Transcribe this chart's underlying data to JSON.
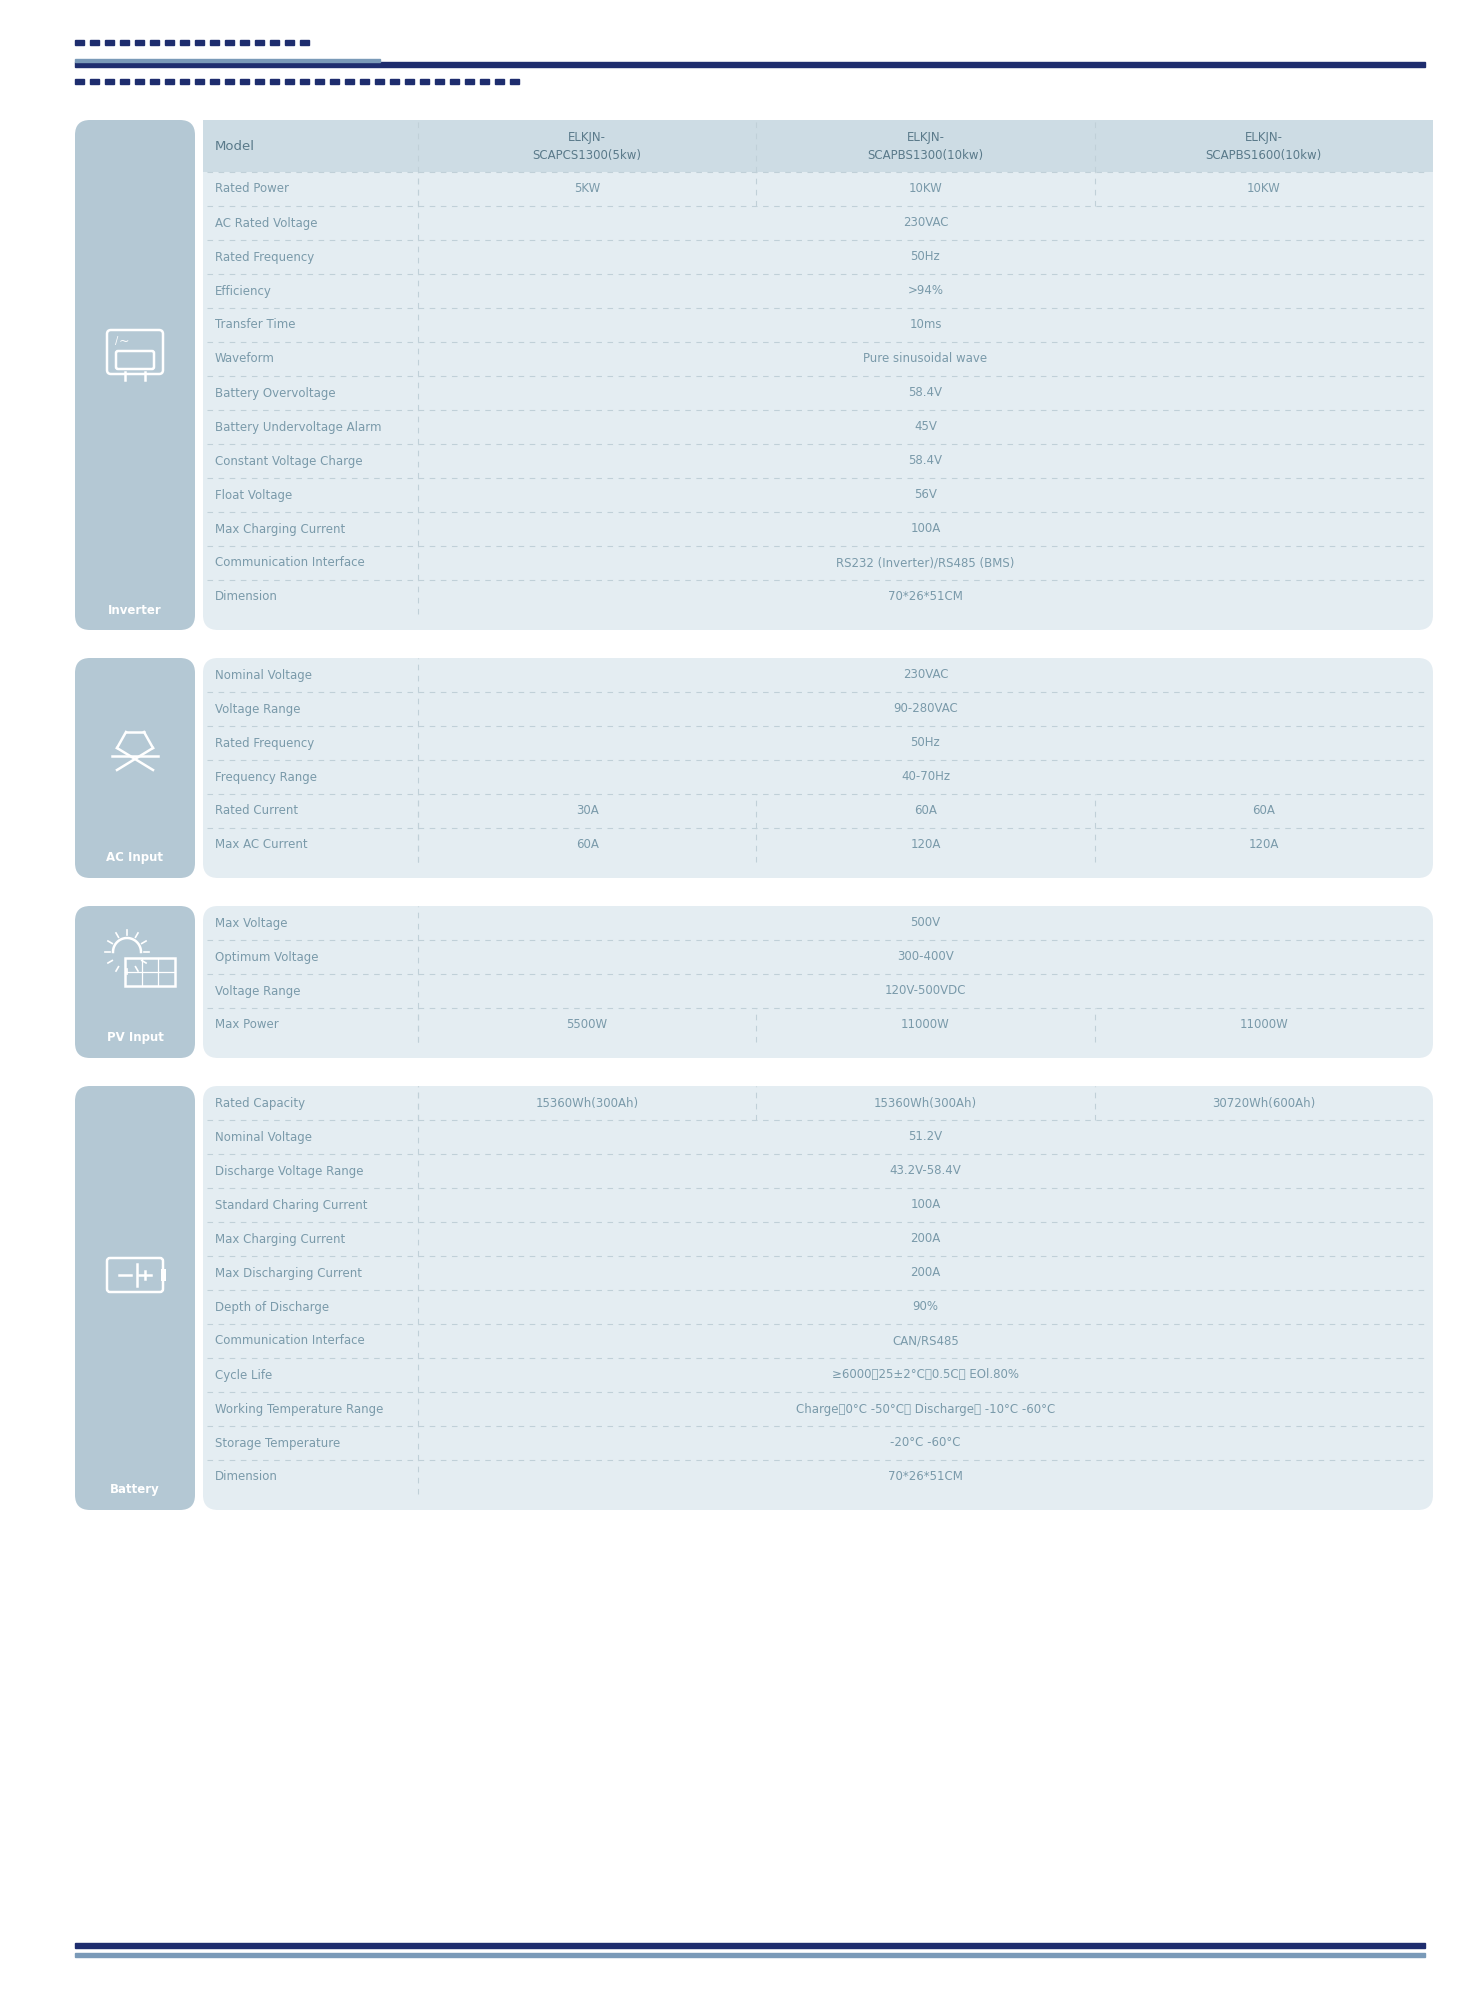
{
  "bg_color": "#ffffff",
  "panel_bg": "#b4c8d4",
  "table_bg": "#e4edf2",
  "dark_blue": "#1e2d6e",
  "light_blue_line": "#7a9ab8",
  "text_color": "#7a9aaa",
  "header_text_color": "#5a7a8a",
  "dashed_color": "#c0d0d8",
  "sections": [
    {
      "icon_label": "Inverter",
      "icon_type": "inverter",
      "rows": [
        {
          "param": "Model",
          "col1": "ELKJN-\nSCAPCS1300(5kw)",
          "col2": "ELKJN-\nSCAPBS1300(10kw)",
          "col3": "ELKJN-\nSCAPBS1600(10kw)",
          "is_header": true
        },
        {
          "param": "Rated Power",
          "col1": "5KW",
          "col2": "10KW",
          "col3": "10KW",
          "span": false,
          "is_header": false
        },
        {
          "param": "AC Rated Voltage",
          "col1": "230VAC",
          "col2": "",
          "col3": "",
          "span": true,
          "is_header": false
        },
        {
          "param": "Rated Frequency",
          "col1": "50Hz",
          "col2": "",
          "col3": "",
          "span": true,
          "is_header": false
        },
        {
          "param": "Efficiency",
          "col1": ">94%",
          "col2": "",
          "col3": "",
          "span": true,
          "is_header": false
        },
        {
          "param": "Transfer Time",
          "col1": "10ms",
          "col2": "",
          "col3": "",
          "span": true,
          "is_header": false
        },
        {
          "param": "Waveform",
          "col1": "Pure sinusoidal wave",
          "col2": "",
          "col3": "",
          "span": true,
          "is_header": false
        },
        {
          "param": "Battery Overvoltage",
          "col1": "58.4V",
          "col2": "",
          "col3": "",
          "span": true,
          "is_header": false
        },
        {
          "param": "Battery Undervoltage Alarm",
          "col1": "45V",
          "col2": "",
          "col3": "",
          "span": true,
          "is_header": false
        },
        {
          "param": "Constant Voltage Charge",
          "col1": "58.4V",
          "col2": "",
          "col3": "",
          "span": true,
          "is_header": false
        },
        {
          "param": "Float Voltage",
          "col1": "56V",
          "col2": "",
          "col3": "",
          "span": true,
          "is_header": false
        },
        {
          "param": "Max Charging Current",
          "col1": "100A",
          "col2": "",
          "col3": "",
          "span": true,
          "is_header": false
        },
        {
          "param": "Communication Interface",
          "col1": "RS232 (Inverter)/RS485 (BMS)",
          "col2": "",
          "col3": "",
          "span": true,
          "is_header": false
        },
        {
          "param": "Dimension",
          "col1": "70*26*51CM",
          "col2": "",
          "col3": "",
          "span": true,
          "is_header": false
        }
      ]
    },
    {
      "icon_label": "AC Input",
      "icon_type": "ac_input",
      "rows": [
        {
          "param": "Nominal Voltage",
          "col1": "230VAC",
          "col2": "",
          "col3": "",
          "span": true,
          "is_header": false
        },
        {
          "param": "Voltage Range",
          "col1": "90-280VAC",
          "col2": "",
          "col3": "",
          "span": true,
          "is_header": false
        },
        {
          "param": "Rated Frequency",
          "col1": "50Hz",
          "col2": "",
          "col3": "",
          "span": true,
          "is_header": false
        },
        {
          "param": "Frequency Range",
          "col1": "40-70Hz",
          "col2": "",
          "col3": "",
          "span": true,
          "is_header": false
        },
        {
          "param": "Rated Current",
          "col1": "30A",
          "col2": "60A",
          "col3": "60A",
          "span": false,
          "is_header": false
        },
        {
          "param": "Max AC Current",
          "col1": "60A",
          "col2": "120A",
          "col3": "120A",
          "span": false,
          "is_header": false
        }
      ]
    },
    {
      "icon_label": "PV Input",
      "icon_type": "pv_input",
      "rows": [
        {
          "param": "Max Voltage",
          "col1": "500V",
          "col2": "",
          "col3": "",
          "span": true,
          "is_header": false
        },
        {
          "param": "Optimum Voltage",
          "col1": "300-400V",
          "col2": "",
          "col3": "",
          "span": true,
          "is_header": false
        },
        {
          "param": "Voltage Range",
          "col1": "120V-500VDC",
          "col2": "",
          "col3": "",
          "span": true,
          "is_header": false
        },
        {
          "param": "Max Power",
          "col1": "5500W",
          "col2": "11000W",
          "col3": "11000W",
          "span": false,
          "is_header": false
        }
      ]
    },
    {
      "icon_label": "Battery",
      "icon_type": "battery",
      "rows": [
        {
          "param": "Rated Capacity",
          "col1": "15360Wh(300Ah)",
          "col2": "15360Wh(300Ah)",
          "col3": "30720Wh(600Ah)",
          "span": false,
          "is_header": false
        },
        {
          "param": "Nominal Voltage",
          "col1": "51.2V",
          "col2": "",
          "col3": "",
          "span": true,
          "is_header": false
        },
        {
          "param": "Discharge Voltage Range",
          "col1": "43.2V-58.4V",
          "col2": "",
          "col3": "",
          "span": true,
          "is_header": false
        },
        {
          "param": "Standard Charing Current",
          "col1": "100A",
          "col2": "",
          "col3": "",
          "span": true,
          "is_header": false
        },
        {
          "param": "Max Charging Current",
          "col1": "200A",
          "col2": "",
          "col3": "",
          "span": true,
          "is_header": false
        },
        {
          "param": "Max Discharging Current",
          "col1": "200A",
          "col2": "",
          "col3": "",
          "span": true,
          "is_header": false
        },
        {
          "param": "Depth of Discharge",
          "col1": "90%",
          "col2": "",
          "col3": "",
          "span": true,
          "is_header": false
        },
        {
          "param": "Communication Interface",
          "col1": "CAN/RS485",
          "col2": "",
          "col3": "",
          "span": true,
          "is_header": false
        },
        {
          "param": "Cycle Life",
          "col1": "≥6000，25±2°C，0.5C， EOl.80%",
          "col2": "",
          "col3": "",
          "span": true,
          "is_header": false
        },
        {
          "param": "Working Temperature Range",
          "col1": "Charge：0°C -50°C； Discharge： -10°C -60°C",
          "col2": "",
          "col3": "",
          "span": true,
          "is_header": false
        },
        {
          "param": "Storage Temperature",
          "col1": "-20°C -60°C",
          "col2": "",
          "col3": "",
          "span": true,
          "is_header": false
        },
        {
          "param": "Dimension",
          "col1": "70*26*51CM",
          "col2": "",
          "col3": "",
          "span": true,
          "is_header": false
        }
      ]
    }
  ]
}
